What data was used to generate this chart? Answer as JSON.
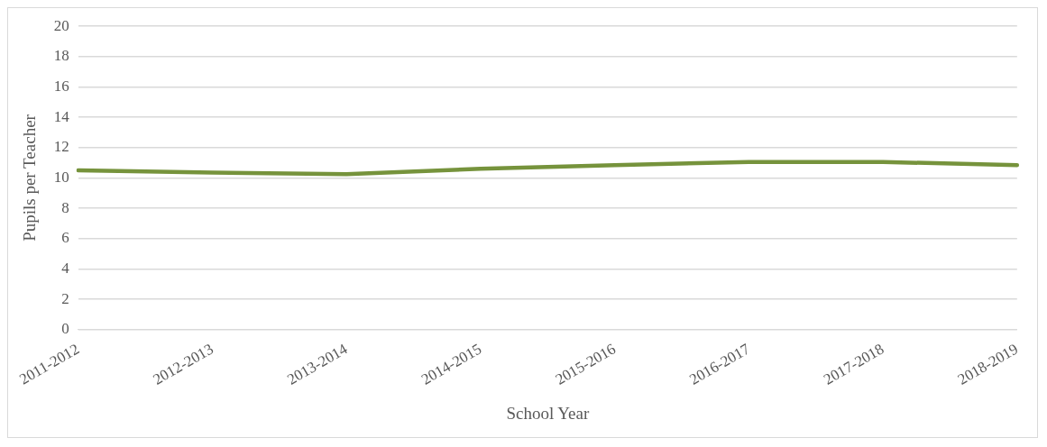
{
  "chart_data": {
    "type": "line",
    "xlabel": "School Year",
    "ylabel": "Pupils per Teacher",
    "categories": [
      "2011-2012",
      "2012-2013",
      "2013-2014",
      "2014-2015",
      "2015-2016",
      "2016-2017",
      "2017-2018",
      "2018-2019"
    ],
    "series": [
      {
        "color": "#76933c",
        "values": [
          10.5,
          10.35,
          10.25,
          10.6,
          10.85,
          11.05,
          11.05,
          10.85
        ]
      }
    ],
    "ylim": [
      0,
      20
    ],
    "yticks": [
      0,
      2,
      4,
      6,
      8,
      10,
      12,
      14,
      16,
      18,
      20
    ],
    "grid": "y",
    "legend": false,
    "marker": "none",
    "line_style": "solid"
  }
}
